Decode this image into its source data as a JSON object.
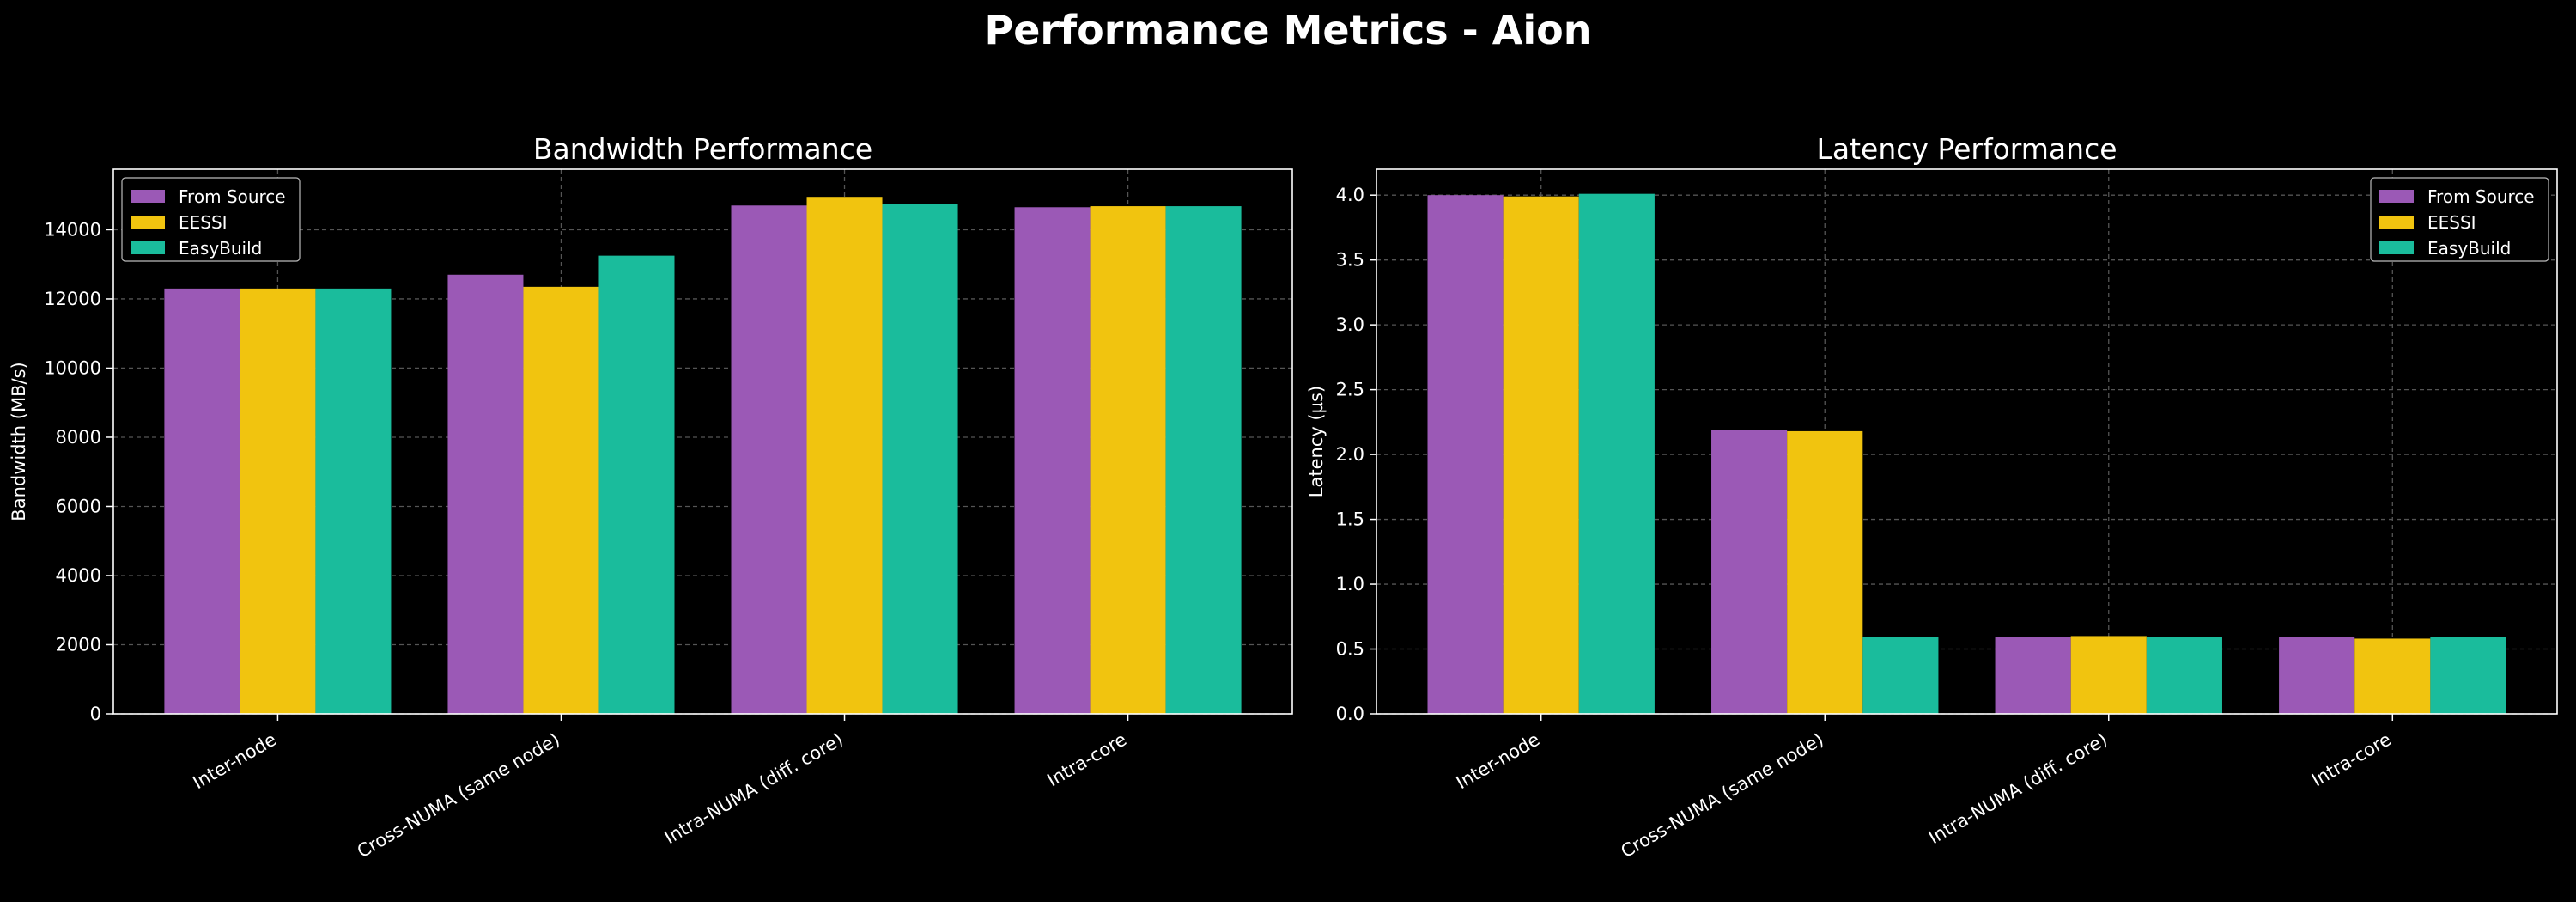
{
  "figure": {
    "title": "Performance Metrics - Aion"
  },
  "colors": {
    "background": "#000000",
    "axes": "#ffffff",
    "grid": "#555555"
  },
  "chart_data": [
    {
      "type": "bar",
      "title": "Bandwidth Performance",
      "xlabel": "",
      "ylabel": "Bandwidth (MB/s)",
      "categories": [
        "Inter-node",
        "Cross-NUMA (same node)",
        "Intra-NUMA (diff. core)",
        "Intra-core"
      ],
      "series": [
        {
          "name": "From Source",
          "color": "#9b59b6",
          "values": [
            12300,
            12700,
            14700,
            14650
          ]
        },
        {
          "name": "EESSI",
          "color": "#f1c40f",
          "values": [
            12300,
            12350,
            14950,
            14680
          ]
        },
        {
          "name": "EasyBuild",
          "color": "#1abc9c",
          "values": [
            12300,
            13250,
            14750,
            14680
          ]
        }
      ],
      "ylim": [
        0,
        15750
      ],
      "yticks": [
        0,
        2000,
        4000,
        6000,
        8000,
        10000,
        12000,
        14000
      ],
      "ytick_labels": [
        "0",
        "2000",
        "4000",
        "6000",
        "8000",
        "10000",
        "12000",
        "14000"
      ],
      "grid": true,
      "legend": "top-left"
    },
    {
      "type": "bar",
      "title": "Latency Performance",
      "xlabel": "",
      "ylabel": "Latency (µs)",
      "categories": [
        "Inter-node",
        "Cross-NUMA (same node)",
        "Intra-NUMA (diff. core)",
        "Intra-core"
      ],
      "series": [
        {
          "name": "From Source",
          "color": "#9b59b6",
          "values": [
            4.0,
            2.19,
            0.59,
            0.59
          ]
        },
        {
          "name": "EESSI",
          "color": "#f1c40f",
          "values": [
            3.99,
            2.18,
            0.6,
            0.58
          ]
        },
        {
          "name": "EasyBuild",
          "color": "#1abc9c",
          "values": [
            4.01,
            0.59,
            0.59,
            0.59
          ]
        }
      ],
      "ylim": [
        0,
        4.2
      ],
      "yticks": [
        0.0,
        0.5,
        1.0,
        1.5,
        2.0,
        2.5,
        3.0,
        3.5,
        4.0
      ],
      "ytick_labels": [
        "0.0",
        "0.5",
        "1.0",
        "1.5",
        "2.0",
        "2.5",
        "3.0",
        "3.5",
        "4.0"
      ],
      "grid": true,
      "legend": "top-right"
    }
  ]
}
